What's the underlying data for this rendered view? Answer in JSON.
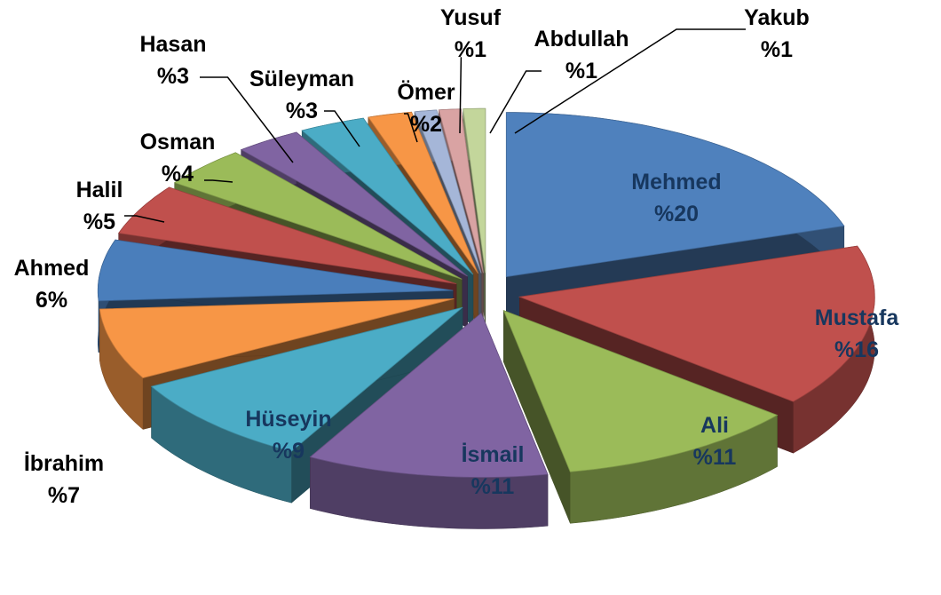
{
  "chart_data": {
    "type": "pie3d",
    "categories": [
      "Mehmed",
      "Mustafa",
      "Ali",
      "İsmail",
      "Hüseyin",
      "İbrahim",
      "Ahmed",
      "Halil",
      "Osman",
      "Hasan",
      "Süleyman",
      "Ömer",
      "Yusuf",
      "Abdullah",
      "Yakub"
    ],
    "values": [
      20,
      16,
      11,
      11,
      9,
      7,
      6,
      5,
      4,
      3,
      3,
      2,
      1,
      1,
      1
    ],
    "value_labels": [
      "%20",
      "%16",
      "%11",
      "%11",
      "%9",
      "%7",
      "6%",
      "%5",
      "%4",
      "%3",
      "%3",
      "%2",
      "%1",
      "%1",
      "%1"
    ],
    "colors": [
      "#4f81bd",
      "#c0504d",
      "#9bbb59",
      "#8064a2",
      "#4bacc6",
      "#f79646",
      "#4a7ebb",
      "#c0504d",
      "#9bbb59",
      "#8064a2",
      "#4bacc6",
      "#f79646",
      "#a5b6d8",
      "#d9a3a3",
      "#c3d69b"
    ]
  }
}
